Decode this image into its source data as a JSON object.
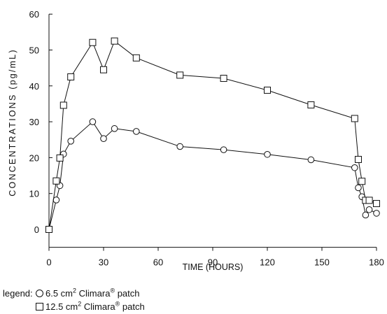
{
  "chart_data": {
    "type": "line",
    "title": "",
    "xlabel": "TIME (HOURS)",
    "ylabel": "CONCENTRATIONS (pg/mL)",
    "xlim": [
      0,
      180
    ],
    "ylim": [
      -5,
      60
    ],
    "xticks": [
      0,
      30,
      60,
      90,
      120,
      150,
      180
    ],
    "yticks": [
      0,
      10,
      20,
      30,
      40,
      50,
      60
    ],
    "grid": false,
    "legend_position": "bottom-left",
    "series": [
      {
        "name": "6.5 cm2 Climara® patch",
        "marker": "circle",
        "x": [
          0,
          4,
          6,
          8,
          12,
          24,
          30,
          36,
          48,
          72,
          96,
          120,
          144,
          168,
          170,
          172,
          174,
          176,
          180
        ],
        "y": [
          0,
          8.2,
          12.2,
          21,
          24.6,
          30,
          25.3,
          28.1,
          27.3,
          23.1,
          22.2,
          20.9,
          19.4,
          17.2,
          11.6,
          9.1,
          4,
          5.5,
          4.5
        ]
      },
      {
        "name": "12.5 cm2 Climara® patch",
        "marker": "square",
        "x": [
          0,
          4,
          6,
          8,
          12,
          24,
          30,
          36,
          48,
          72,
          96,
          120,
          144,
          168,
          170,
          172,
          174,
          176,
          180
        ],
        "y": [
          0,
          13.5,
          19.9,
          34.6,
          42.5,
          52.1,
          44.5,
          52.5,
          47.8,
          43,
          42.1,
          38.8,
          34.7,
          30.9,
          19.5,
          13.4,
          8.1,
          8.1,
          7.2
        ]
      }
    ]
  },
  "legend": {
    "lead": "legend:",
    "items": [
      {
        "marker": "circle",
        "prefix": "6.5 cm",
        "sup": "2",
        "mid": " Climara",
        "reg": "®",
        "suffix": " patch"
      },
      {
        "marker": "square",
        "prefix": "12.5 cm",
        "sup": "2",
        "mid": " Climara",
        "reg": "®",
        "suffix": " patch"
      }
    ]
  }
}
